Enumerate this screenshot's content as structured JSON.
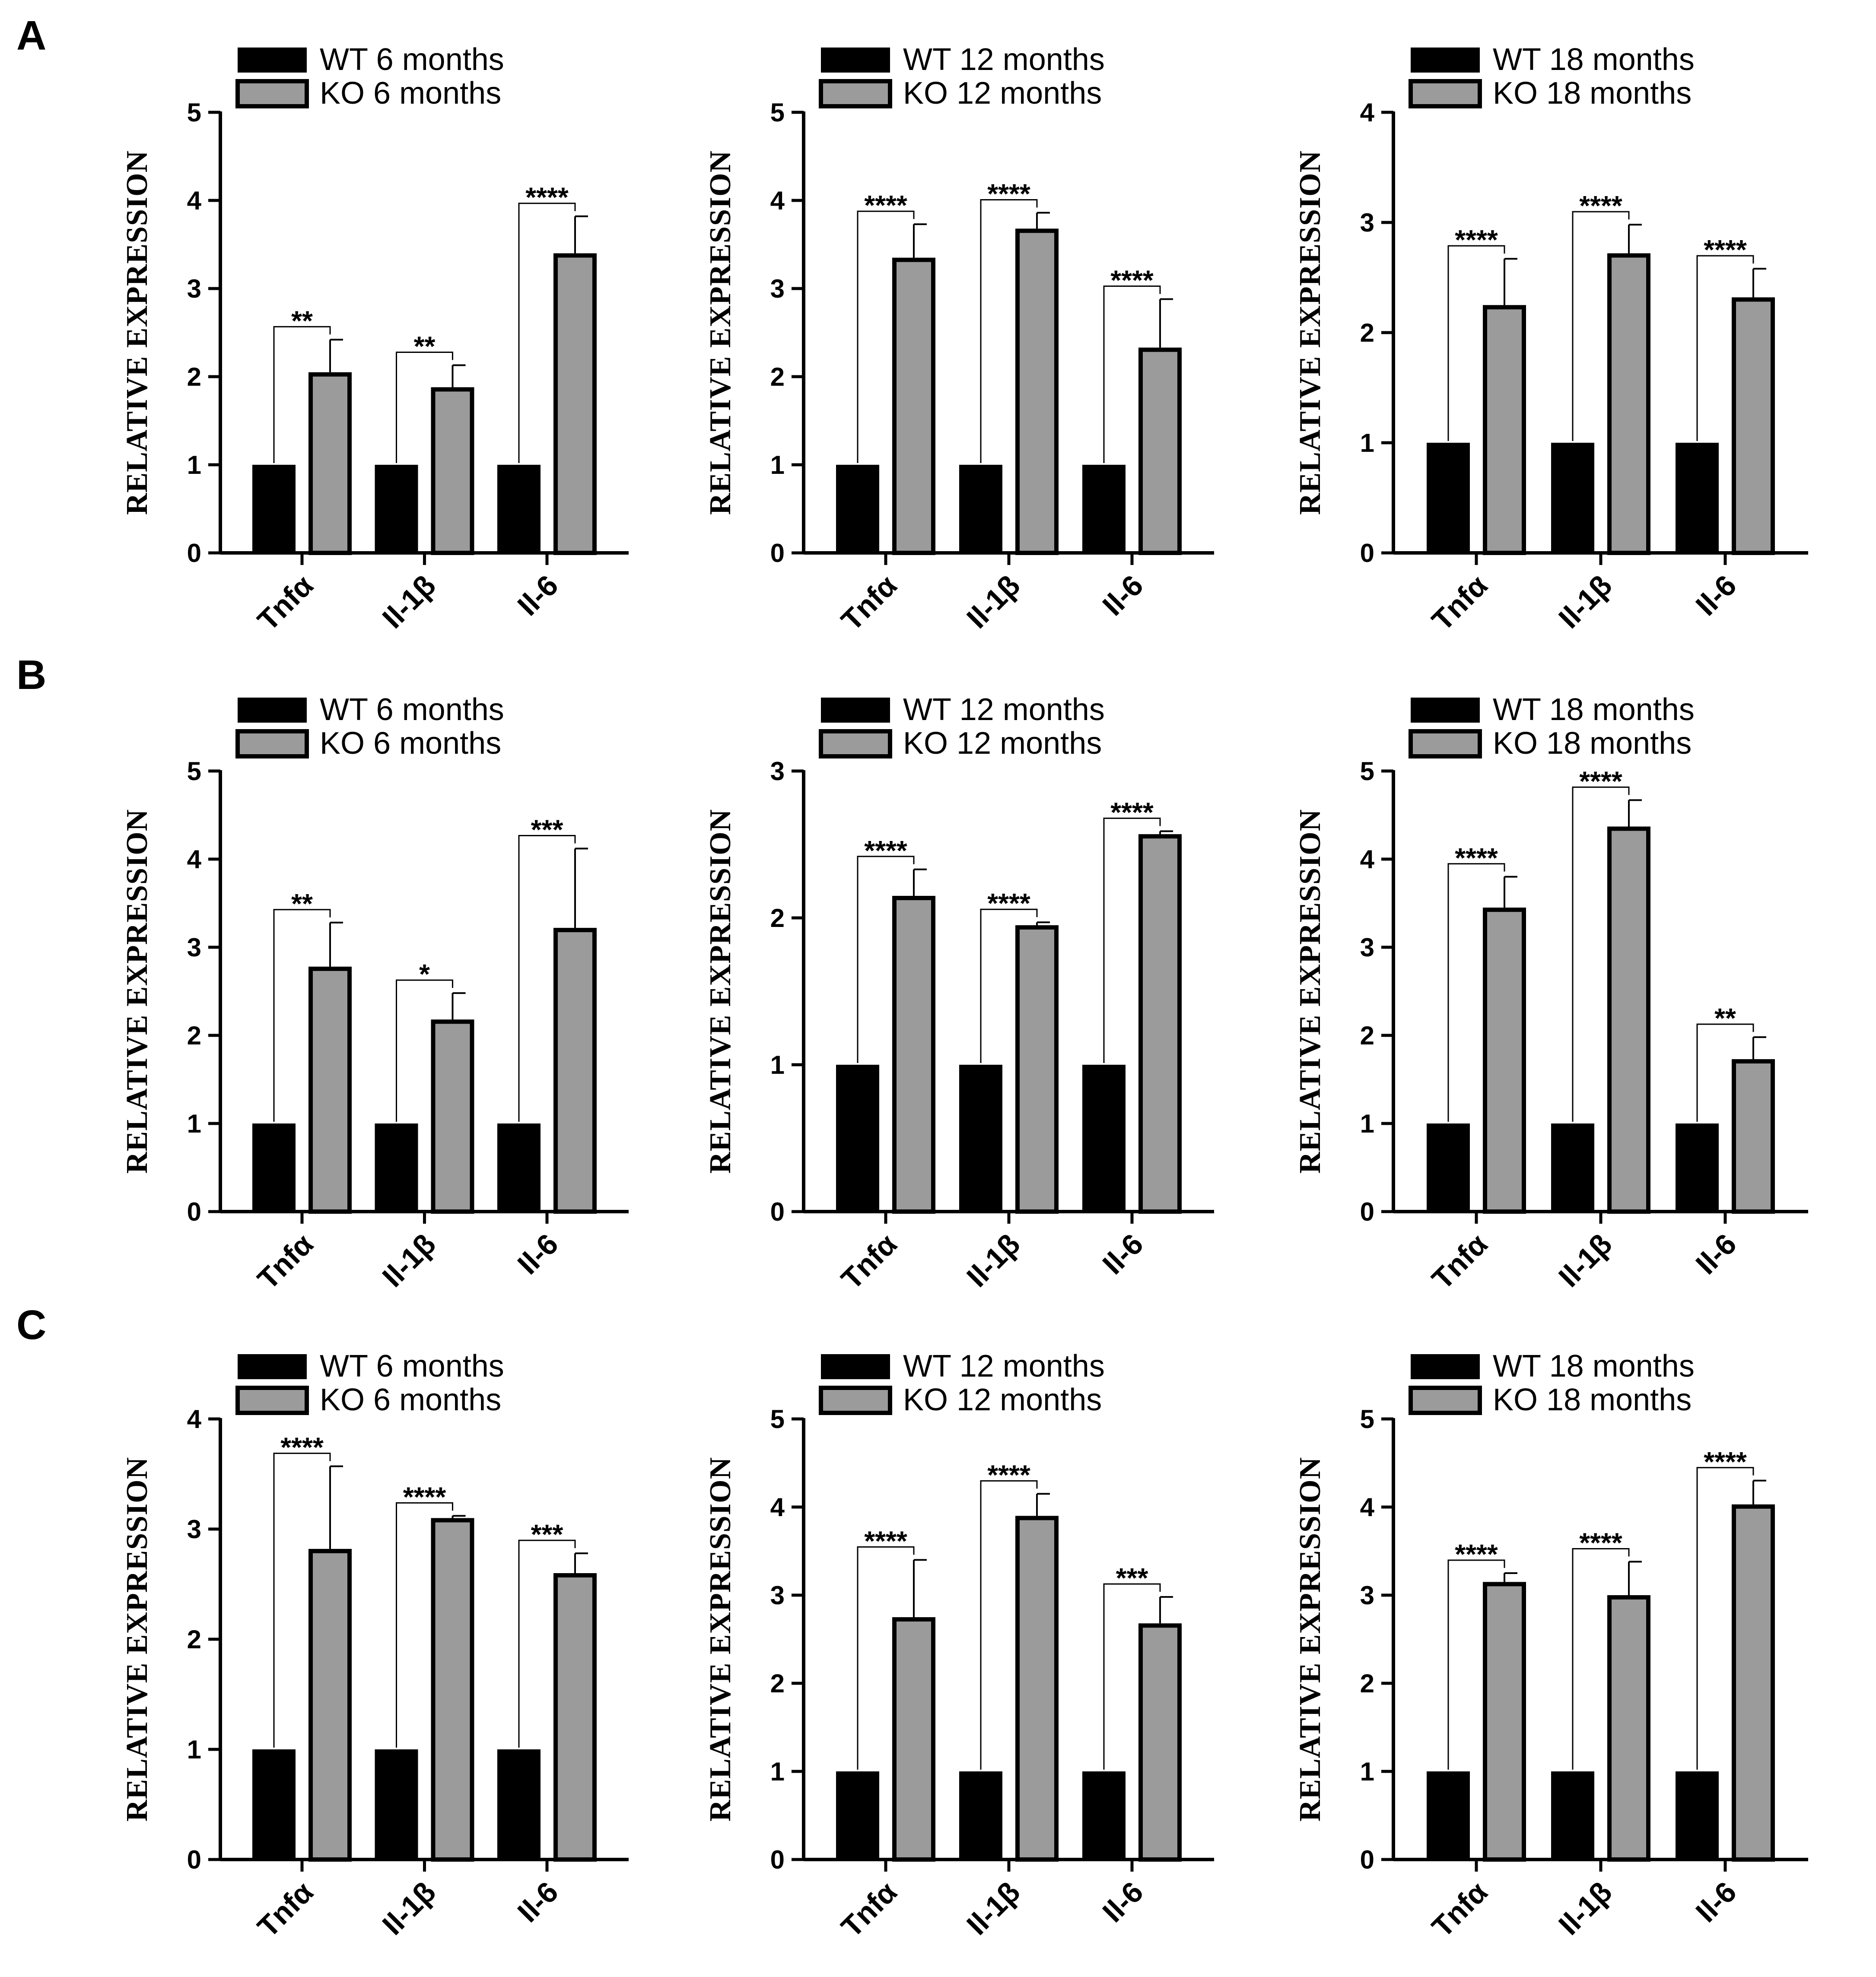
{
  "colors": {
    "wt": "#000000",
    "ko": "#9b9b9b",
    "axis": "#000000"
  },
  "ylabel": "RELATIVE EXPRESSION",
  "chart_data": [
    {
      "type": "bar",
      "panel": "A",
      "categories": [
        "Tnfα",
        "Il-1β",
        "Il-6"
      ],
      "ylim": [
        0,
        5
      ],
      "yticks": [
        "0",
        "1",
        "2",
        "3",
        "4",
        "5"
      ],
      "ylabel": "RELATIVE EXPRESSION",
      "series": [
        {
          "name": "WT 6 months",
          "values": [
            1.0,
            1.0,
            1.0
          ]
        },
        {
          "name": "KO 6 months",
          "values": [
            2.05,
            1.88,
            3.4
          ],
          "errors": [
            0.37,
            0.25,
            0.42
          ]
        }
      ],
      "significance": [
        "**",
        "**",
        "****"
      ]
    },
    {
      "type": "bar",
      "panel": "",
      "categories": [
        "Tnfα",
        "Il-1β",
        "Il-6"
      ],
      "ylim": [
        0,
        5
      ],
      "yticks": [
        "0",
        "1",
        "2",
        "3",
        "4",
        "5"
      ],
      "ylabel": "RELATIVE EXPRESSION",
      "series": [
        {
          "name": "WT 12 months",
          "values": [
            1.0,
            1.0,
            1.0
          ]
        },
        {
          "name": "KO 12 months",
          "values": [
            3.35,
            3.68,
            2.33
          ],
          "errors": [
            0.38,
            0.18,
            0.55
          ]
        }
      ],
      "significance": [
        "****",
        "****",
        "****"
      ]
    },
    {
      "type": "bar",
      "panel": "",
      "categories": [
        "Tnfα",
        "Il-1β",
        "Il-6"
      ],
      "ylim": [
        0,
        4
      ],
      "yticks": [
        "0",
        "1",
        "2",
        "3",
        "4"
      ],
      "ylabel": "RELATIVE EXPRESSION",
      "series": [
        {
          "name": "WT 18 months",
          "values": [
            1.0,
            1.0,
            1.0
          ]
        },
        {
          "name": "KO 18 months",
          "values": [
            2.25,
            2.72,
            2.32
          ],
          "errors": [
            0.42,
            0.26,
            0.26
          ]
        }
      ],
      "significance": [
        "****",
        "****",
        "****"
      ]
    },
    {
      "type": "bar",
      "panel": "B",
      "categories": [
        "Tnfα",
        "Il-1β",
        "Il-6"
      ],
      "ylim": [
        0,
        5
      ],
      "yticks": [
        "0",
        "1",
        "2",
        "3",
        "4",
        "5"
      ],
      "ylabel": "RELATIVE EXPRESSION",
      "series": [
        {
          "name": "WT 6 months",
          "values": [
            1.0,
            1.0,
            1.0
          ]
        },
        {
          "name": "KO 6 months",
          "values": [
            2.78,
            2.18,
            3.22
          ],
          "errors": [
            0.5,
            0.3,
            0.9
          ]
        }
      ],
      "significance": [
        "**",
        "*",
        "***"
      ]
    },
    {
      "type": "bar",
      "panel": "",
      "categories": [
        "Tnfα",
        "Il-1β",
        "Il-6"
      ],
      "ylim": [
        0,
        3
      ],
      "yticks": [
        "0",
        "1",
        "2",
        "3"
      ],
      "ylabel": "RELATIVE EXPRESSION",
      "series": [
        {
          "name": "WT 12 months",
          "values": [
            1.0,
            1.0,
            1.0
          ]
        },
        {
          "name": "KO 12 months",
          "values": [
            2.15,
            1.95,
            2.57
          ],
          "errors": [
            0.18,
            0.02,
            0.02
          ]
        }
      ],
      "significance": [
        "****",
        "****",
        "****"
      ]
    },
    {
      "type": "bar",
      "panel": "",
      "categories": [
        "Tnfα",
        "Il-1β",
        "Il-6"
      ],
      "ylim": [
        0,
        5
      ],
      "yticks": [
        "0",
        "1",
        "2",
        "3",
        "4",
        "5"
      ],
      "ylabel": "RELATIVE EXPRESSION",
      "series": [
        {
          "name": "WT 18 months",
          "values": [
            1.0,
            1.0,
            1.0
          ]
        },
        {
          "name": "KO 18 months",
          "values": [
            3.45,
            4.37,
            1.73
          ],
          "errors": [
            0.35,
            0.3,
            0.25
          ]
        }
      ],
      "significance": [
        "****",
        "****",
        "**"
      ]
    },
    {
      "type": "bar",
      "panel": "C",
      "categories": [
        "Tnfα",
        "Il-1β",
        "Il-6"
      ],
      "ylim": [
        0,
        4
      ],
      "yticks": [
        "0",
        "1",
        "2",
        "3",
        "4"
      ],
      "ylabel": "RELATIVE EXPRESSION",
      "series": [
        {
          "name": "WT 6 months",
          "values": [
            1.0,
            1.0,
            1.0
          ]
        },
        {
          "name": "KO 6 months",
          "values": [
            2.82,
            3.1,
            2.6
          ],
          "errors": [
            0.75,
            0.02,
            0.18
          ]
        }
      ],
      "significance": [
        "****",
        "****",
        "***"
      ]
    },
    {
      "type": "bar",
      "panel": "",
      "categories": [
        "Tnfα",
        "Il-1β",
        "Il-6"
      ],
      "ylim": [
        0,
        5
      ],
      "yticks": [
        "0",
        "1",
        "2",
        "3",
        "4",
        "5"
      ],
      "ylabel": "RELATIVE EXPRESSION",
      "series": [
        {
          "name": "WT 12 months",
          "values": [
            1.0,
            1.0,
            1.0
          ]
        },
        {
          "name": "KO 12 months",
          "values": [
            2.75,
            3.9,
            2.68
          ],
          "errors": [
            0.65,
            0.25,
            0.3
          ]
        }
      ],
      "significance": [
        "****",
        "****",
        "***"
      ]
    },
    {
      "type": "bar",
      "panel": "",
      "categories": [
        "Tnfα",
        "Il-1β",
        "Il-6"
      ],
      "ylim": [
        0,
        5
      ],
      "yticks": [
        "0",
        "1",
        "2",
        "3",
        "4",
        "5"
      ],
      "ylabel": "RELATIVE EXPRESSION",
      "series": [
        {
          "name": "WT 18 months",
          "values": [
            1.0,
            1.0,
            1.0
          ]
        },
        {
          "name": "KO 18 months",
          "values": [
            3.15,
            3.0,
            4.03
          ],
          "errors": [
            0.1,
            0.38,
            0.27
          ]
        }
      ],
      "significance": [
        "****",
        "****",
        "****"
      ]
    }
  ]
}
